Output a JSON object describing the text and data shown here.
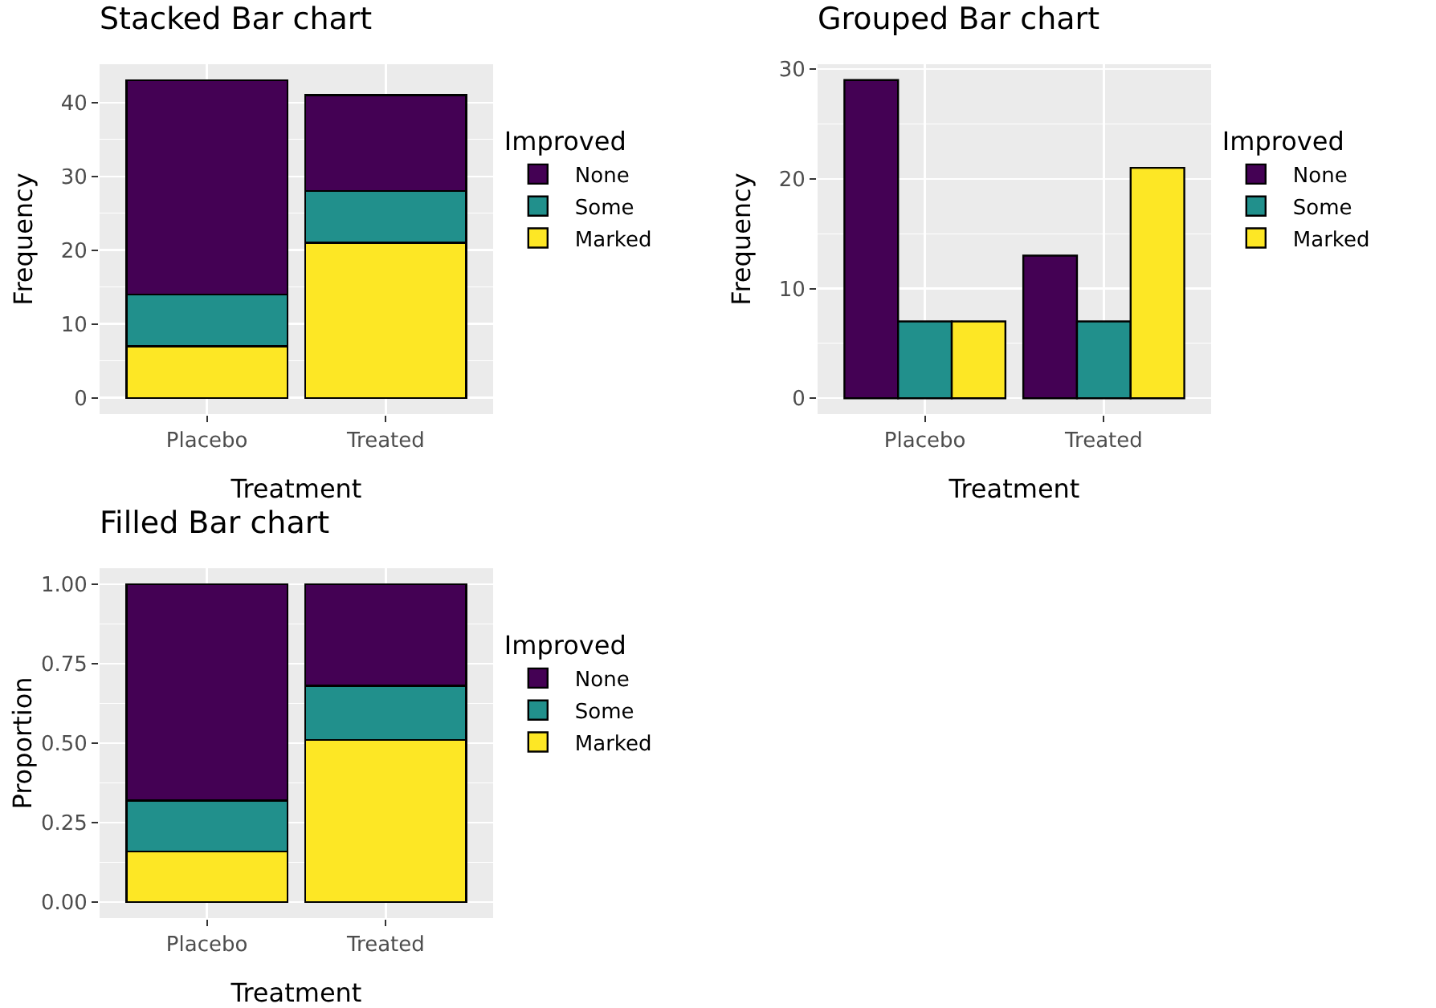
{
  "chart_data": [
    {
      "type": "bar",
      "title": "Stacked Bar chart",
      "xlabel": "Treatment",
      "ylabel": "Frequency",
      "legend_title": "Improved",
      "categories": [
        "Placebo",
        "Treated"
      ],
      "stacked": true,
      "series": [
        {
          "name": "Marked",
          "color": "#fde725",
          "values": [
            7,
            21
          ]
        },
        {
          "name": "Some",
          "color": "#21908c",
          "values": [
            7,
            7
          ]
        },
        {
          "name": "None",
          "color": "#440154",
          "values": [
            29,
            13
          ]
        }
      ],
      "ylim": [
        -2.2,
        45.2
      ],
      "yticks": [
        0,
        10,
        20,
        30,
        40
      ],
      "grid": true,
      "legend": "right"
    },
    {
      "type": "bar",
      "title": "Grouped Bar chart",
      "xlabel": "Treatment",
      "ylabel": "Frequency",
      "legend_title": "Improved",
      "categories": [
        "Placebo",
        "Treated"
      ],
      "series": [
        {
          "name": "None",
          "color": "#440154",
          "values": [
            29,
            13
          ]
        },
        {
          "name": "Some",
          "color": "#21908c",
          "values": [
            7,
            7
          ]
        },
        {
          "name": "Marked",
          "color": "#fde725",
          "values": [
            7,
            21
          ]
        }
      ],
      "ylim": [
        -1.45,
        30.45
      ],
      "yticks": [
        0,
        10,
        20,
        30
      ],
      "grid": true,
      "legend": "right"
    },
    {
      "type": "bar",
      "title": "Filled Bar chart",
      "xlabel": "Treatment",
      "ylabel": "Proportion",
      "legend_title": "Improved",
      "categories": [
        "Placebo",
        "Treated"
      ],
      "stacked": true,
      "series": [
        {
          "name": "Marked",
          "color": "#fde725",
          "values": [
            0.16,
            0.51
          ]
        },
        {
          "name": "Some",
          "color": "#21908c",
          "values": [
            0.16,
            0.17
          ]
        },
        {
          "name": "None",
          "color": "#440154",
          "values": [
            0.68,
            0.32
          ]
        }
      ],
      "ylim": [
        -0.05,
        1.05
      ],
      "yticks": [
        {
          "value": 0,
          "label": "0.00"
        },
        {
          "value": 0.25,
          "label": "0.25"
        },
        {
          "value": 0.5,
          "label": "0.50"
        },
        {
          "value": 0.75,
          "label": "0.75"
        },
        {
          "value": 1,
          "label": "1.00"
        }
      ],
      "grid": true,
      "legend": "right"
    }
  ]
}
